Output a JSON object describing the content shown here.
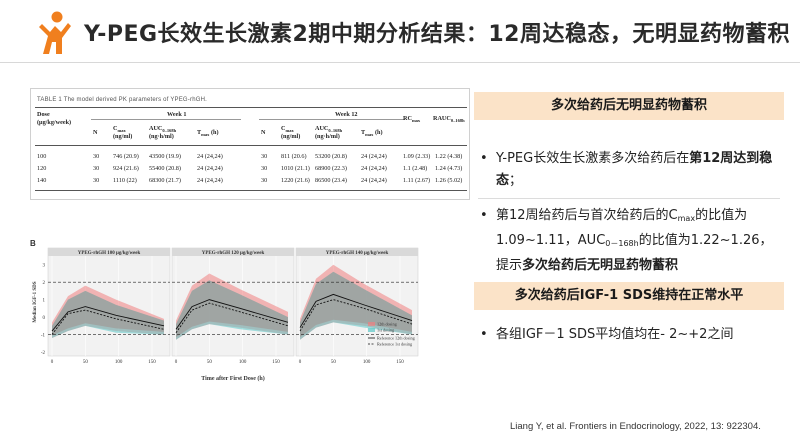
{
  "header": {
    "title": "Y-PEG长效生长激素2期中期分析结果：12周达稳态，无明显药物蓄积",
    "brand_color": "#f07f1e"
  },
  "pk_table": {
    "caption": "TABLE 1  The model derived PK parameters of YPEG-rhGH.",
    "group_headers": [
      "Week 1",
      "Week 12"
    ],
    "dose_header": [
      "Dose",
      "(μg/kg/week)"
    ],
    "columns": {
      "n": "N",
      "cmax": "C",
      "cmax_sub": "max",
      "cmax_unit": "(ng/ml)",
      "auc": "AUC",
      "auc_sub": "0–168h",
      "auc_unit": "(ng·h/ml)",
      "tmax": "T",
      "tmax_sub": "max",
      "tmax_unit": "(h)",
      "rc": "RC",
      "rc_sub": "max",
      "rauc": "RAUC",
      "rauc_sub": "0–168h"
    },
    "rows": [
      {
        "dose": "100",
        "n1": "30",
        "cmax1": "746 (20.9)",
        "auc1": "43500 (19.9)",
        "tmax1": "24 (24,24)",
        "n12": "30",
        "cmax12": "811 (20.6)",
        "auc12": "53200 (20.8)",
        "tmax12": "24 (24,24)",
        "rc": "1.09 (2.33)",
        "rauc": "1.22 (4.38)"
      },
      {
        "dose": "120",
        "n1": "30",
        "cmax1": "924 (21.6)",
        "auc1": "55400 (20.8)",
        "tmax1": "24 (24,24)",
        "n12": "30",
        "cmax12": "1010 (21.1)",
        "auc12": "68900 (22.3)",
        "tmax12": "24 (24,24)",
        "rc": "1.1 (2.48)",
        "rauc": "1.24 (4.73)"
      },
      {
        "dose": "140",
        "n1": "30",
        "cmax1": "1110 (22)",
        "auc1": "68300 (21.7)",
        "tmax1": "24 (24,24)",
        "n12": "30",
        "cmax12": "1220 (21.6)",
        "auc12": "86500 (23.4)",
        "tmax12": "24 (24,24)",
        "rc": "1.11 (2.67)",
        "rauc": "1.26 (5.02)"
      }
    ]
  },
  "chart_data": [
    {
      "type": "line",
      "panel_label": "B",
      "title": "YPEG-rhGH 100 μg/kg/week",
      "ylabel": "Median IGF-1 SDS",
      "xlim": [
        0,
        168
      ],
      "ylim": [
        -2,
        3.5
      ],
      "x_ticks": [
        "0",
        "50",
        "100",
        "150"
      ],
      "y_ticks": [
        "3",
        "2",
        "1",
        "0",
        "-1",
        "-2"
      ],
      "reference_lines": [
        2,
        -1
      ],
      "series": [
        {
          "name": "12th dosing",
          "x": [
            0,
            24,
            50,
            96,
            168
          ],
          "values": [
            -0.8,
            0.3,
            0.6,
            0.1,
            -0.5
          ],
          "upper": [
            -0.3,
            1.2,
            1.8,
            1.0,
            -0.1
          ],
          "lower": [
            -1.2,
            -0.8,
            -0.5,
            -0.8,
            -1.0
          ]
        },
        {
          "name": "1st dosing",
          "x": [
            0,
            24,
            50,
            96,
            168
          ],
          "values": [
            -1.0,
            0.2,
            0.4,
            -0.1,
            -0.7
          ],
          "upper": [
            -0.5,
            1.0,
            1.5,
            0.7,
            -0.2
          ],
          "lower": [
            -1.2,
            -0.8,
            -0.5,
            -0.9,
            -1.0
          ]
        }
      ]
    },
    {
      "type": "line",
      "title": "YPEG-rhGH 120 μg/kg/week",
      "xlim": [
        0,
        168
      ],
      "ylim": [
        -2,
        3.5
      ],
      "x_ticks": [
        "0",
        "50",
        "100",
        "150"
      ],
      "reference_lines": [
        2,
        -1
      ],
      "series": [
        {
          "name": "12th dosing",
          "x": [
            0,
            24,
            50,
            96,
            168
          ],
          "values": [
            -0.7,
            0.6,
            1.0,
            0.5,
            -0.3
          ],
          "upper": [
            -0.2,
            1.8,
            2.5,
            1.6,
            0.3
          ],
          "lower": [
            -1.3,
            -0.7,
            -0.4,
            -0.6,
            -1.0
          ]
        },
        {
          "name": "1st dosing",
          "x": [
            0,
            24,
            50,
            96,
            168
          ],
          "values": [
            -0.9,
            0.4,
            0.8,
            0.3,
            -0.5
          ],
          "upper": [
            -0.4,
            1.5,
            2.1,
            1.3,
            0.0
          ],
          "lower": [
            -1.3,
            -0.7,
            -0.4,
            -0.7,
            -1.0
          ]
        }
      ]
    },
    {
      "type": "line",
      "title": "YPEG-rhGH 140 μg/kg/week",
      "xlim": [
        0,
        168
      ],
      "ylim": [
        -2,
        3.5
      ],
      "x_ticks": [
        "0",
        "50",
        "100",
        "150"
      ],
      "reference_lines": [
        2,
        -1
      ],
      "series": [
        {
          "name": "12th dosing",
          "x": [
            0,
            24,
            50,
            96,
            168
          ],
          "values": [
            -0.6,
            0.9,
            1.3,
            0.7,
            -0.2
          ],
          "upper": [
            -0.1,
            2.2,
            3.0,
            1.9,
            0.4
          ],
          "lower": [
            -1.3,
            -0.6,
            -0.3,
            -0.5,
            -1.0
          ]
        },
        {
          "name": "1st dosing",
          "x": [
            0,
            24,
            50,
            96,
            168
          ],
          "values": [
            -0.8,
            0.7,
            1.0,
            0.5,
            -0.4
          ],
          "upper": [
            -0.3,
            1.9,
            2.6,
            1.6,
            0.1
          ],
          "lower": [
            -1.3,
            -0.6,
            -0.3,
            -0.6,
            -1.0
          ]
        }
      ]
    }
  ],
  "chart_legend": {
    "band_12th": "12th dosing",
    "band_1st": "1st dosing",
    "line_12th": "Reference 12th dosing",
    "line_1st": "Reference 1st dosing",
    "color_12th": "#f08080",
    "color_1st": "#5cc8c8"
  },
  "chart_xlabel": "Time after First Dose (h)",
  "right": {
    "banner1": "多次给药后无明显药物蓄积",
    "bullet1": {
      "a": "Y-PEG长效生长激素多次给药后在",
      "b": "第12周达到稳态",
      "c": "；"
    },
    "bullet2": {
      "a": "第12周给药后与首次给药后的C",
      "sub1": "max",
      "b": "的比值为1.09~1.11，AUC",
      "sub2": "0－168h",
      "c": "的比值为1.22~1.26，提示",
      "d": "多次给药后无明显药物蓄积"
    },
    "banner2": "多次给药后IGF-1 SDS维持在正常水平",
    "bullet3": "各组IGF－1 SDS平均值均在- 2~+2之间",
    "bullet_symbol": "•",
    "banner_color": "#fbe3c8"
  },
  "citation": "Liang Y, et al. Frontiers in Endocrinology, 2022, 13: 922304."
}
